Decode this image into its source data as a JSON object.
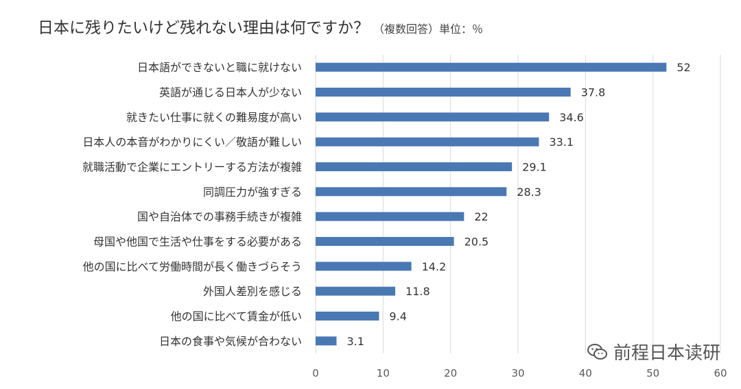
{
  "chart_data": {
    "type": "bar",
    "orientation": "horizontal",
    "title": "日本に残りたいけど残れない理由は何ですか？",
    "subtitle": "（複数回答）単位：％",
    "categories": [
      "日本語ができないと職に就けない",
      "英語が通じる日本人が少ない",
      "就きたい仕事に就くの難易度が高い",
      "日本人の本音がわかりにくい／敬語が難しい",
      "就職活動で企業にエントリーする方法が複雑",
      "同調圧力が強すぎる",
      "国や自治体での事務手続きが複雑",
      "母国や他国で生活や仕事をする必要がある",
      "他の国に比べて労働時間が長く働きづらそう",
      "外国人差別を感じる",
      "他の国に比べて賃金が低い",
      "日本の食事や気候が合わない"
    ],
    "values": [
      52,
      37.8,
      34.6,
      33.1,
      29.1,
      28.3,
      22,
      20.5,
      14.2,
      11.8,
      9.4,
      3.1
    ],
    "xlim": [
      0,
      60
    ],
    "xticks": [
      0,
      10,
      20,
      30,
      40,
      50,
      60
    ],
    "xlabel": "",
    "ylabel": "",
    "grid": "vertical",
    "legend": "none",
    "bar_color": "#4a78b3"
  },
  "watermark": {
    "text": "前程日本读研",
    "icon": "wechat-icon"
  }
}
